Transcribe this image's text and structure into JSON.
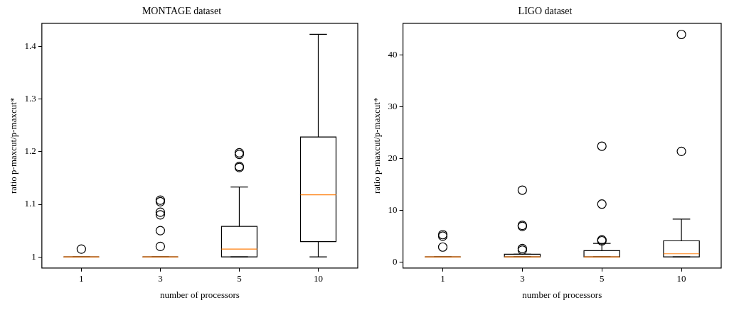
{
  "chart_data": [
    {
      "type": "box",
      "title": "MONTAGE dataset",
      "xlabel": "number of processors",
      "ylabel": "ratio p-maxcut/p-maxcut*",
      "categories": [
        "1",
        "3",
        "5",
        "10"
      ],
      "ylim": [
        0.979,
        1.444
      ],
      "yticks": [
        1,
        1.1,
        1.2,
        1.3,
        1.4
      ],
      "grid": false,
      "legend": false,
      "boxes": [
        {
          "low": 1,
          "q1": 1,
          "median": 1,
          "q3": 1,
          "high": 1,
          "outliers": [
            1.015
          ]
        },
        {
          "low": 1,
          "q1": 1,
          "median": 1,
          "q3": 1,
          "high": 1,
          "outliers": [
            1.02,
            1.05,
            1.08,
            1.085,
            1.105,
            1.108
          ]
        },
        {
          "low": 1,
          "q1": 1,
          "median": 1.015,
          "q3": 1.058,
          "high": 1.133,
          "outliers": [
            1.17,
            1.172,
            1.195,
            1.198
          ]
        },
        {
          "low": 1,
          "q1": 1.029,
          "median": 1.118,
          "q3": 1.228,
          "high": 1.423
        }
      ]
    },
    {
      "type": "box",
      "title": "LIGO dataset",
      "xlabel": "number of processors",
      "ylabel": "ratio p-maxcut/p-maxcut*",
      "categories": [
        "1",
        "3",
        "5",
        "10"
      ],
      "ylim": [
        -1.15,
        46.15
      ],
      "yticks": [
        0,
        10,
        20,
        30,
        40
      ],
      "grid": false,
      "legend": false,
      "boxes": [
        {
          "low": 1,
          "q1": 1,
          "median": 1,
          "q3": 1,
          "high": 1,
          "outliers": [
            2.9,
            5,
            5.3
          ]
        },
        {
          "low": 1,
          "q1": 1,
          "median": 1,
          "q3": 1.5,
          "high": 1.5,
          "outliers": [
            2.3,
            2.6,
            6.9,
            7.1,
            13.9
          ]
        },
        {
          "low": 1,
          "q1": 1,
          "median": 1,
          "q3": 2.2,
          "high": 3.6,
          "outliers": [
            4.1,
            4.3,
            11.2,
            22.4
          ]
        },
        {
          "low": 1,
          "q1": 1,
          "median": 1.6,
          "q3": 4.1,
          "high": 8.3,
          "outliers": [
            21.4,
            44
          ]
        }
      ]
    }
  ]
}
